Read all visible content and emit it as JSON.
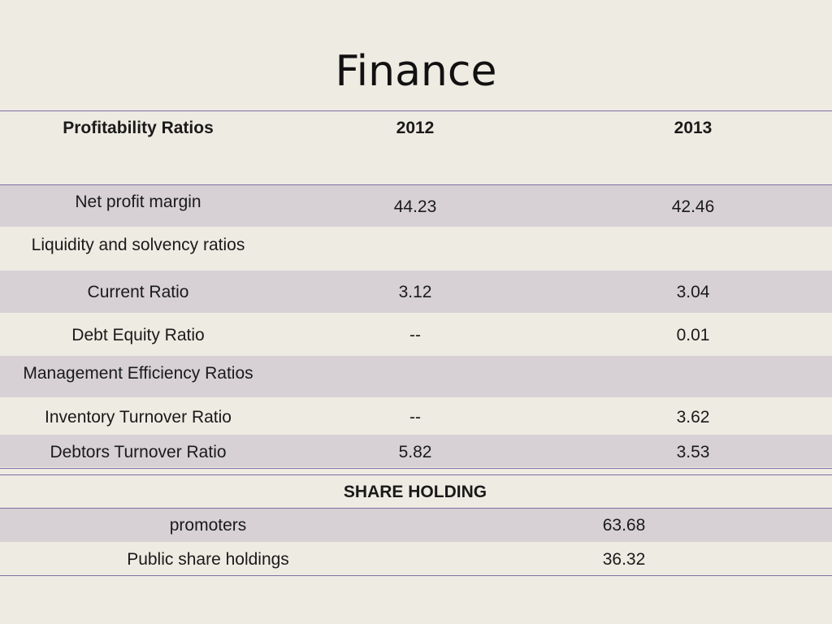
{
  "page": {
    "title": "Finance"
  },
  "ratios_table": {
    "headers": [
      "Profitability Ratios",
      "2012",
      "2013"
    ],
    "rows": [
      {
        "label": "Net profit margin",
        "y2012": "44.23",
        "y2013": "42.46"
      },
      {
        "label": "Liquidity and solvency ratios",
        "y2012": "",
        "y2013": ""
      },
      {
        "label": "Current Ratio",
        "y2012": "3.12",
        "y2013": "3.04"
      },
      {
        "label": "Debt Equity Ratio",
        "y2012": "--",
        "y2013": "0.01"
      },
      {
        "label": "Management Efficiency Ratios",
        "y2012": "",
        "y2013": ""
      },
      {
        "label": "Inventory Turnover Ratio",
        "y2012": "--",
        "y2013": "3.62"
      },
      {
        "label": "Debtors Turnover Ratio",
        "y2012": "5.82",
        "y2013": "3.53"
      }
    ]
  },
  "share_table": {
    "header": "SHARE HOLDING",
    "rows": [
      {
        "label": "promoters",
        "value": "63.68"
      },
      {
        "label": "Public share holdings",
        "value": "36.32"
      }
    ]
  },
  "colors": {
    "background": "#eeebe2",
    "row_shade": "#d7d1d6",
    "rule": "#7f6fa3"
  }
}
